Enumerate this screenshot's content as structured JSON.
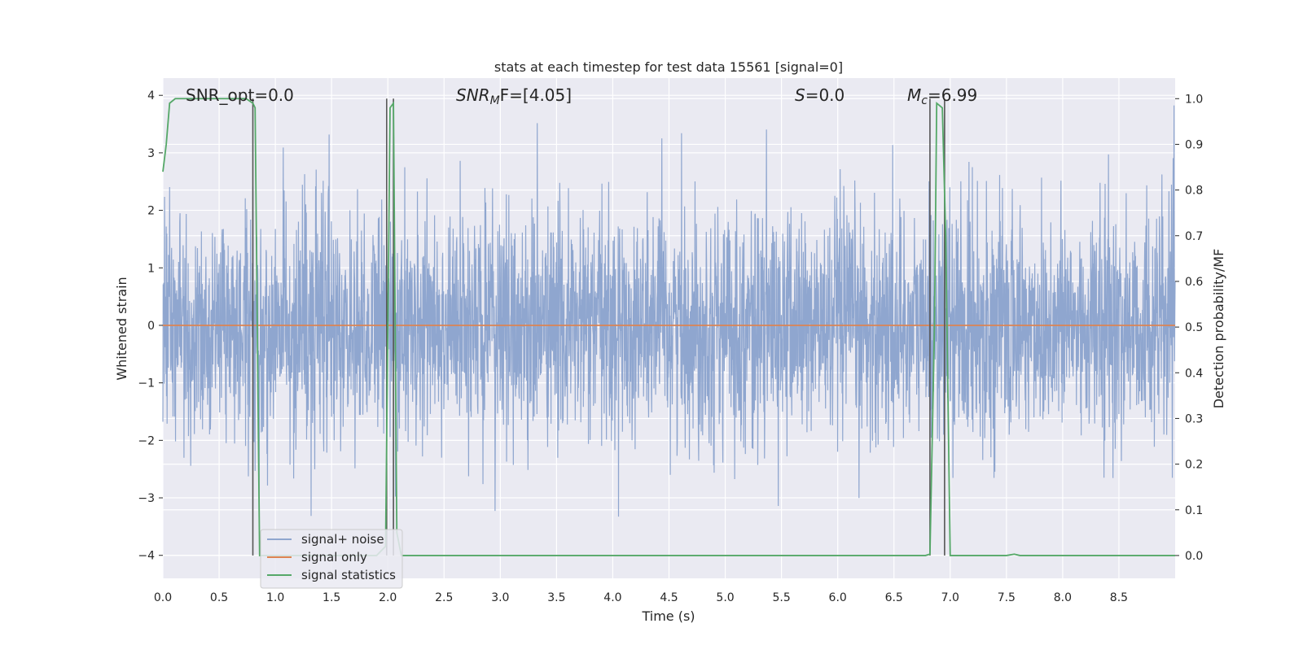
{
  "chart_data": {
    "type": "line",
    "title": "stats at each timestep for test data 15561 [signal=0]",
    "xlabel": "Time (s)",
    "ylabel_left": "Whitened strain",
    "ylabel_right": "Detection probability/MF",
    "xlim": [
      0,
      9
    ],
    "ylim_left": [
      -4.4,
      4.3
    ],
    "ylim_right": [
      -0.05,
      1.045
    ],
    "xticks": [
      "0.0",
      "0.5",
      "1.0",
      "1.5",
      "2.0",
      "2.5",
      "3.0",
      "3.5",
      "4.0",
      "4.5",
      "5.0",
      "5.5",
      "6.0",
      "6.5",
      "7.0",
      "7.5",
      "8.0",
      "8.5"
    ],
    "yticks_left": [
      "−4",
      "−3",
      "−2",
      "−1",
      "0",
      "1",
      "2",
      "3",
      "4"
    ],
    "yticks_right": [
      "0.0",
      "0.1",
      "0.2",
      "0.3",
      "0.4",
      "0.5",
      "0.6",
      "0.7",
      "0.8",
      "0.9",
      "1.0"
    ],
    "grid": true,
    "legend_placement": "lower-left",
    "annotations": {
      "snr_opt": "SNR_opt=0.0",
      "snr_mf_base": "SNR",
      "snr_mf_sub": "M",
      "snr_mf_rest": "F=[4.05]",
      "s_italic": "S",
      "s_rest": "=0.0",
      "mc_base": "M",
      "mc_sub": "c",
      "mc_rest": "=6.99"
    },
    "series": [
      {
        "name": "signal+ noise",
        "color": "#8fa6cf",
        "description_values": "noise samples, typical range -1.7 to 1.5, spikes to ~3.8 / -3.5",
        "envelope_core": [
          -1.65,
          1.55
        ],
        "extreme_range": [
          -3.5,
          3.9
        ]
      },
      {
        "name": "signal only",
        "color": "#dd8452",
        "x": [
          0,
          9
        ],
        "y": [
          0,
          0
        ]
      },
      {
        "name": "signal statistics",
        "color": "#55a868",
        "axis": "right",
        "x": [
          0,
          0.03,
          0.06,
          0.11,
          0.2,
          0.5,
          0.74,
          0.8,
          0.82,
          0.86,
          0.9,
          1.9,
          1.98,
          2.02,
          2.05,
          2.08,
          2.12,
          2.2,
          6.5,
          6.78,
          6.82,
          6.86,
          6.88,
          6.93,
          6.96,
          7.0,
          7.1,
          7.5,
          7.57,
          7.62,
          8.0,
          9.0
        ],
        "y": [
          0.84,
          0.9,
          0.99,
          1.0,
          1.0,
          1.0,
          1.0,
          0.99,
          0.98,
          0.0,
          0.0,
          0.0,
          0.02,
          0.98,
          0.99,
          0.05,
          0.0,
          0.0,
          0.0,
          0.0,
          0.003,
          0.5,
          0.99,
          0.98,
          0.7,
          0.0,
          0.0,
          0.0,
          0.003,
          0.0,
          0.0,
          0.0
        ]
      }
    ],
    "vlines": [
      0.8,
      1.99,
      2.05,
      6.82,
      6.95
    ]
  }
}
